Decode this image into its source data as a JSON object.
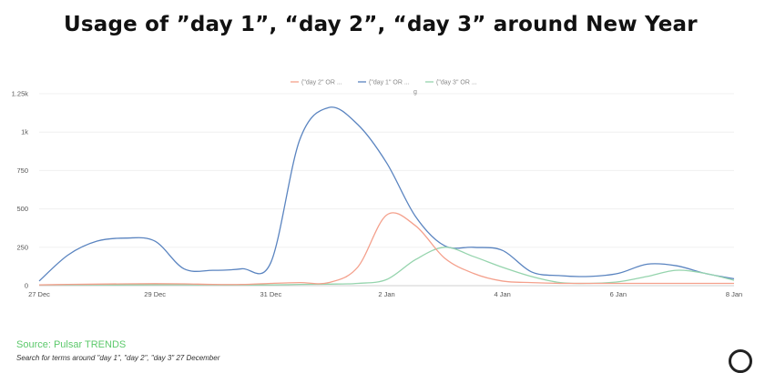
{
  "title": "Usage of ”day 1”, “day 2”, “day 3” around New Year",
  "source": "Source: Pulsar TRENDS",
  "description": "Search for terms around  \"day 1\", \"day 2\", \"day 3\" 27 December",
  "chart_data": {
    "type": "line",
    "x": [
      0,
      0.5,
      1,
      1.5,
      2,
      2.5,
      3,
      3.5,
      4,
      4.5,
      5,
      5.5,
      6,
      6.5,
      7,
      7.5,
      8,
      8.5,
      9,
      9.5,
      10,
      10.5,
      11,
      11.5,
      12
    ],
    "x_ticks": [
      0,
      2,
      4,
      6,
      8,
      10,
      12
    ],
    "x_tick_labels": [
      "27 Dec",
      "29 Dec",
      "31 Dec",
      "2 Jan",
      "4 Jan",
      "6 Jan",
      "8 Jan"
    ],
    "ylim": [
      0,
      1250
    ],
    "y_ticks": [
      0,
      250,
      500,
      750,
      1000,
      1250
    ],
    "y_tick_labels": [
      "0",
      "250",
      "500",
      "750",
      "1k",
      "1.25k"
    ],
    "legend_position": "top",
    "legend_extra_label": "g",
    "series": [
      {
        "name": "(\"day 2\" OR ...",
        "color": "#f4a08c",
        "values": [
          5,
          8,
          10,
          12,
          13,
          12,
          8,
          8,
          15,
          20,
          20,
          120,
          460,
          390,
          180,
          80,
          30,
          20,
          15,
          15,
          15,
          15,
          15,
          15,
          15
        ]
      },
      {
        "name": "(\"day 1\" OR ...",
        "color": "#5a84c0",
        "values": [
          30,
          200,
          290,
          310,
          290,
          110,
          100,
          110,
          150,
          950,
          1160,
          1050,
          800,
          450,
          260,
          250,
          230,
          90,
          65,
          60,
          80,
          140,
          130,
          80,
          45
        ]
      },
      {
        "name": "(\"day 3\" OR ...",
        "color": "#95d4ad",
        "values": [
          5,
          5,
          5,
          5,
          6,
          6,
          5,
          5,
          5,
          8,
          10,
          15,
          40,
          170,
          250,
          190,
          120,
          60,
          20,
          15,
          25,
          60,
          100,
          80,
          35
        ]
      }
    ]
  }
}
